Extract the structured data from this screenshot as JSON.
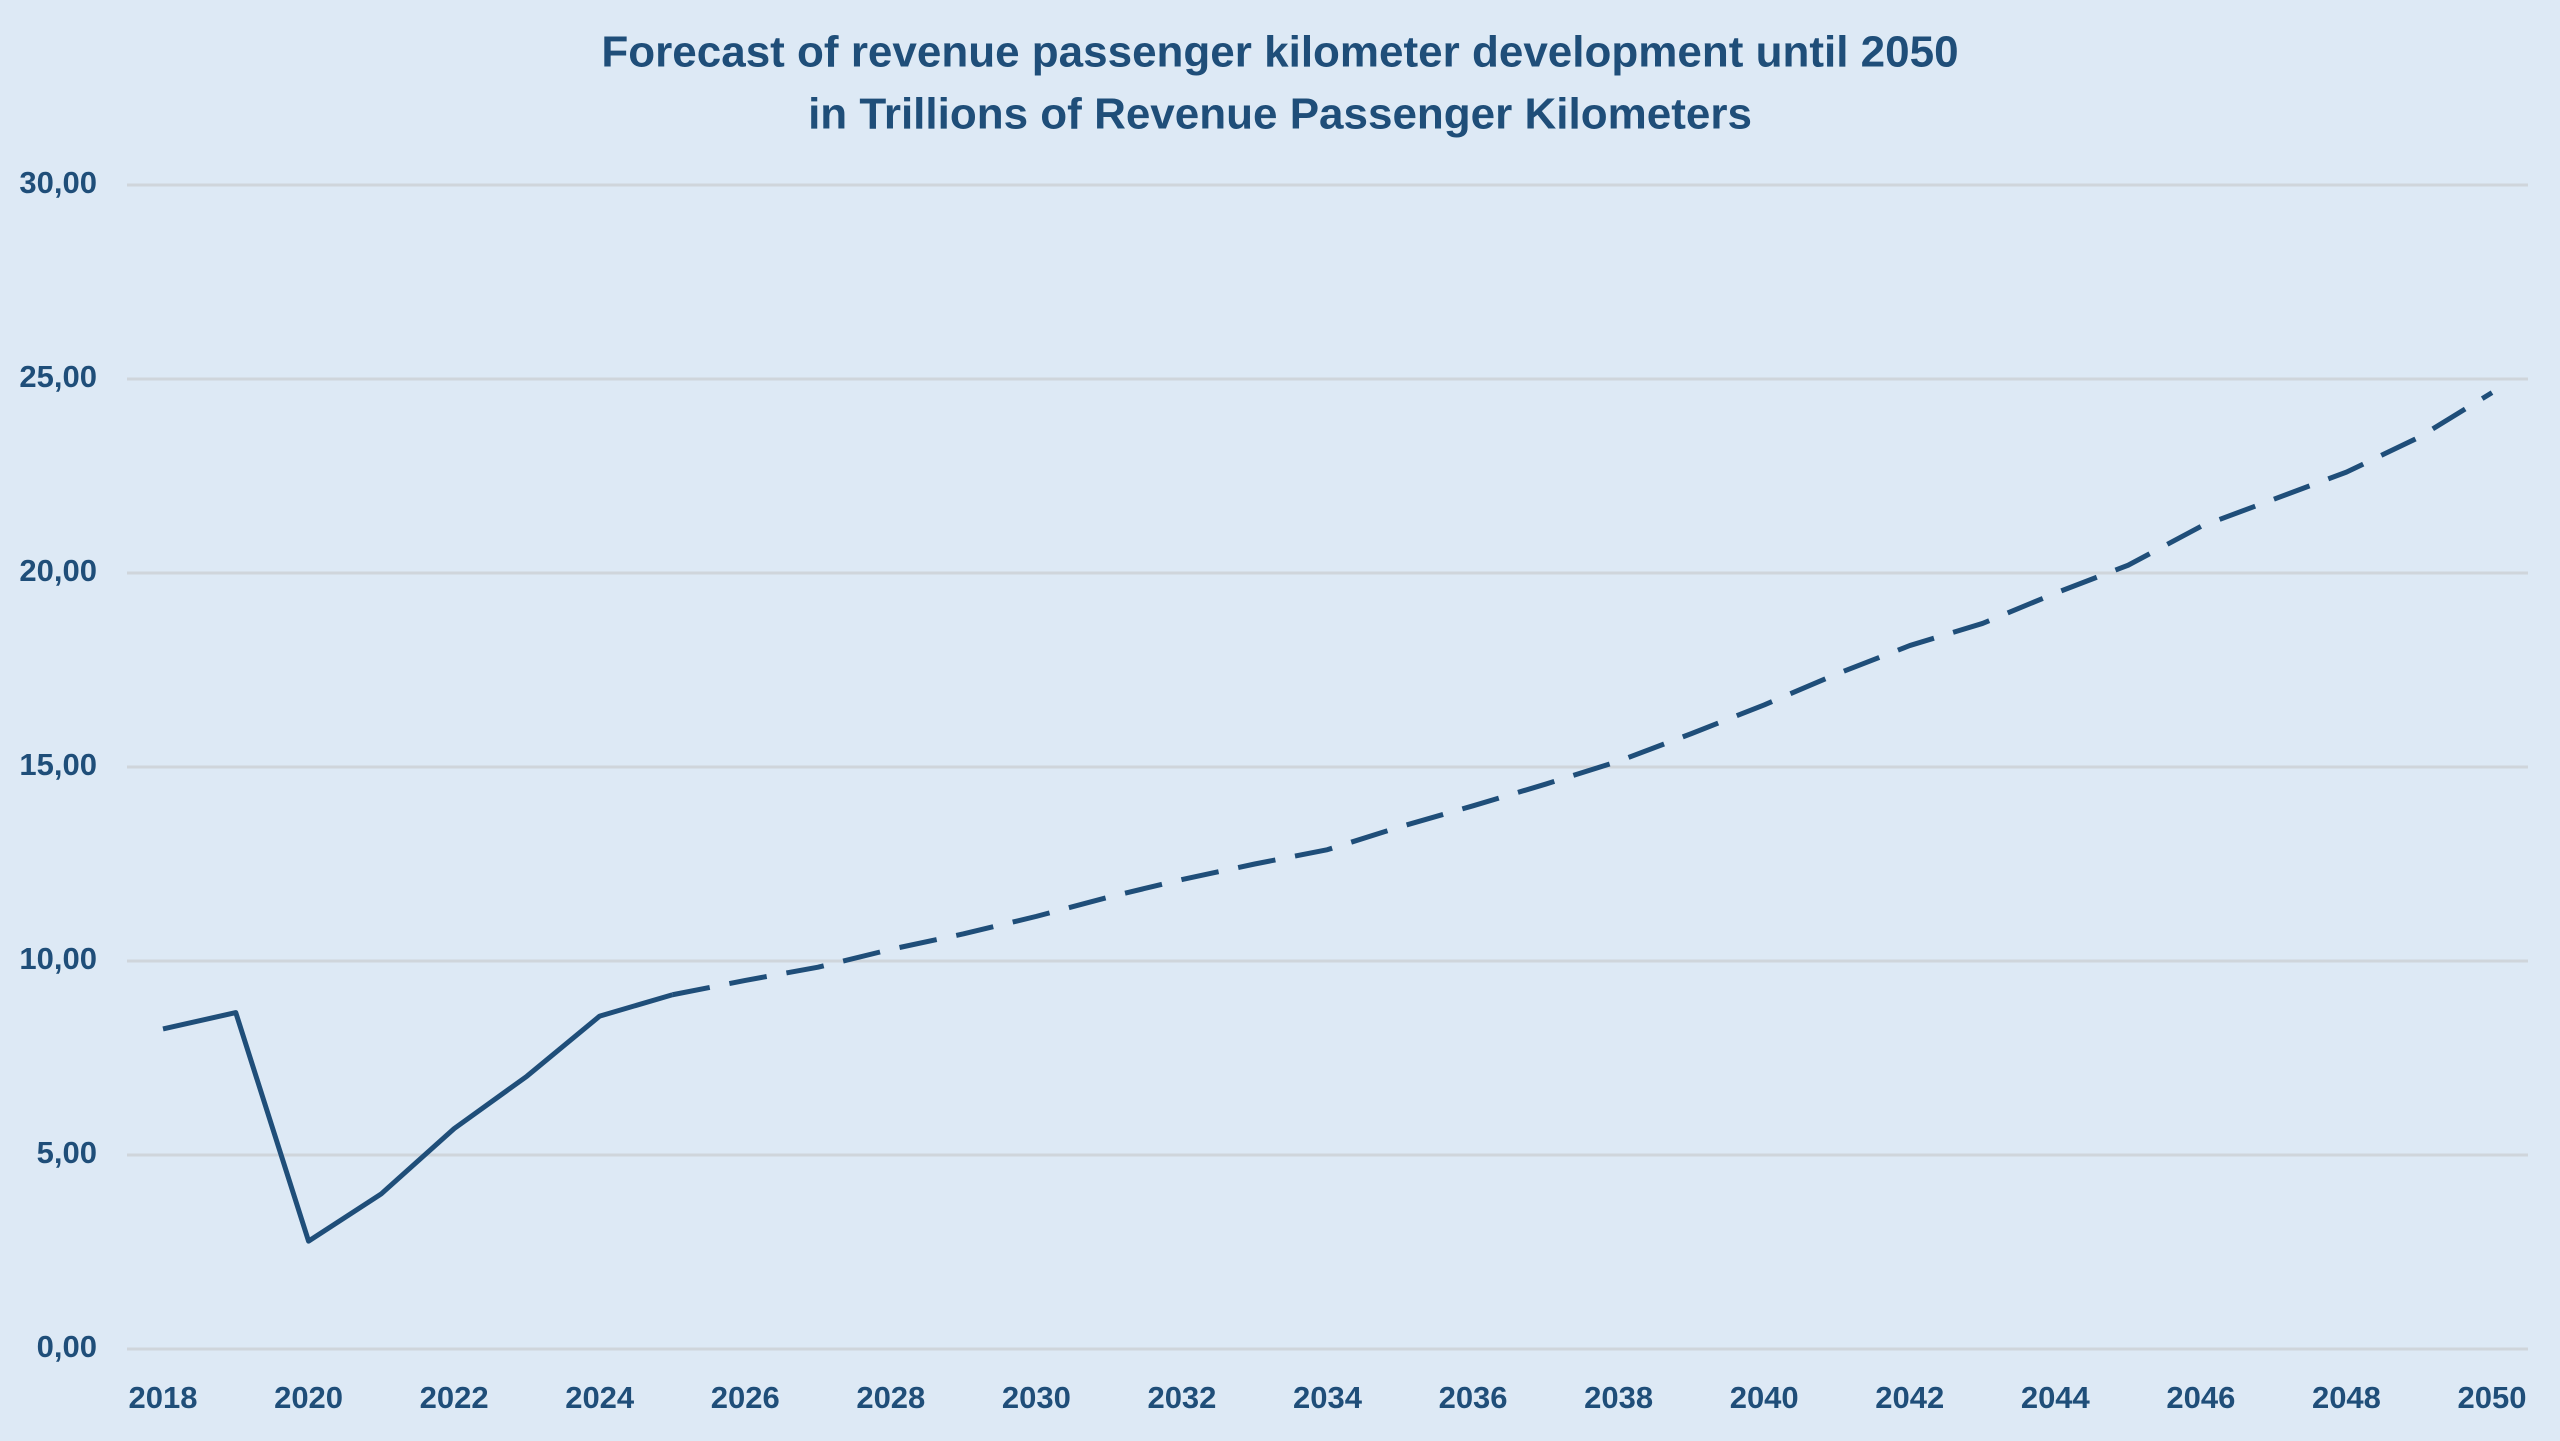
{
  "chart_data": {
    "type": "line",
    "title": "Forecast of revenue passenger kilometer development until 2050",
    "subtitle": "in Trillions of Revenue Passenger Kilometers",
    "x": [
      2018,
      2019,
      2020,
      2021,
      2022,
      2023,
      2024,
      2025,
      2026,
      2027,
      2028,
      2029,
      2030,
      2031,
      2032,
      2033,
      2034,
      2035,
      2036,
      2037,
      2038,
      2039,
      2040,
      2041,
      2042,
      2043,
      2044,
      2045,
      2046,
      2047,
      2048,
      2049,
      2050
    ],
    "series": [
      {
        "color": "#1f4e79",
        "dash": false,
        "values": [
          8.25,
          8.67,
          2.78,
          4.0,
          5.68,
          7.03,
          8.58,
          9.13,
          null,
          null,
          null,
          null,
          null,
          null,
          null,
          null,
          null,
          null,
          null,
          null,
          null,
          null,
          null,
          null,
          null,
          null,
          null,
          null,
          null,
          null,
          null,
          null,
          null
        ]
      },
      {
        "color": "#1f4e79",
        "dash": true,
        "values": [
          null,
          null,
          null,
          null,
          null,
          null,
          null,
          9.13,
          9.5,
          9.84,
          10.3,
          10.7,
          11.15,
          11.65,
          12.1,
          12.5,
          12.87,
          13.46,
          14.0,
          14.56,
          15.15,
          15.86,
          16.6,
          17.4,
          18.13,
          18.7,
          19.48,
          20.2,
          21.2,
          21.9,
          22.6,
          23.5,
          24.65
        ]
      }
    ],
    "xlim": [
      2018,
      2050
    ],
    "xticks": [
      2018,
      2020,
      2022,
      2024,
      2026,
      2028,
      2030,
      2032,
      2034,
      2036,
      2038,
      2040,
      2042,
      2044,
      2046,
      2048,
      2050
    ],
    "ylim": [
      0,
      30
    ],
    "yticks": [
      {
        "value": 0,
        "label": "0,00"
      },
      {
        "value": 5,
        "label": "5,00"
      },
      {
        "value": 10,
        "label": "10,00"
      },
      {
        "value": 15,
        "label": "15,00"
      },
      {
        "value": 20,
        "label": "20,00"
      },
      {
        "value": 25,
        "label": "25,00"
      },
      {
        "value": 30,
        "label": "30,00"
      }
    ],
    "grid": true
  }
}
